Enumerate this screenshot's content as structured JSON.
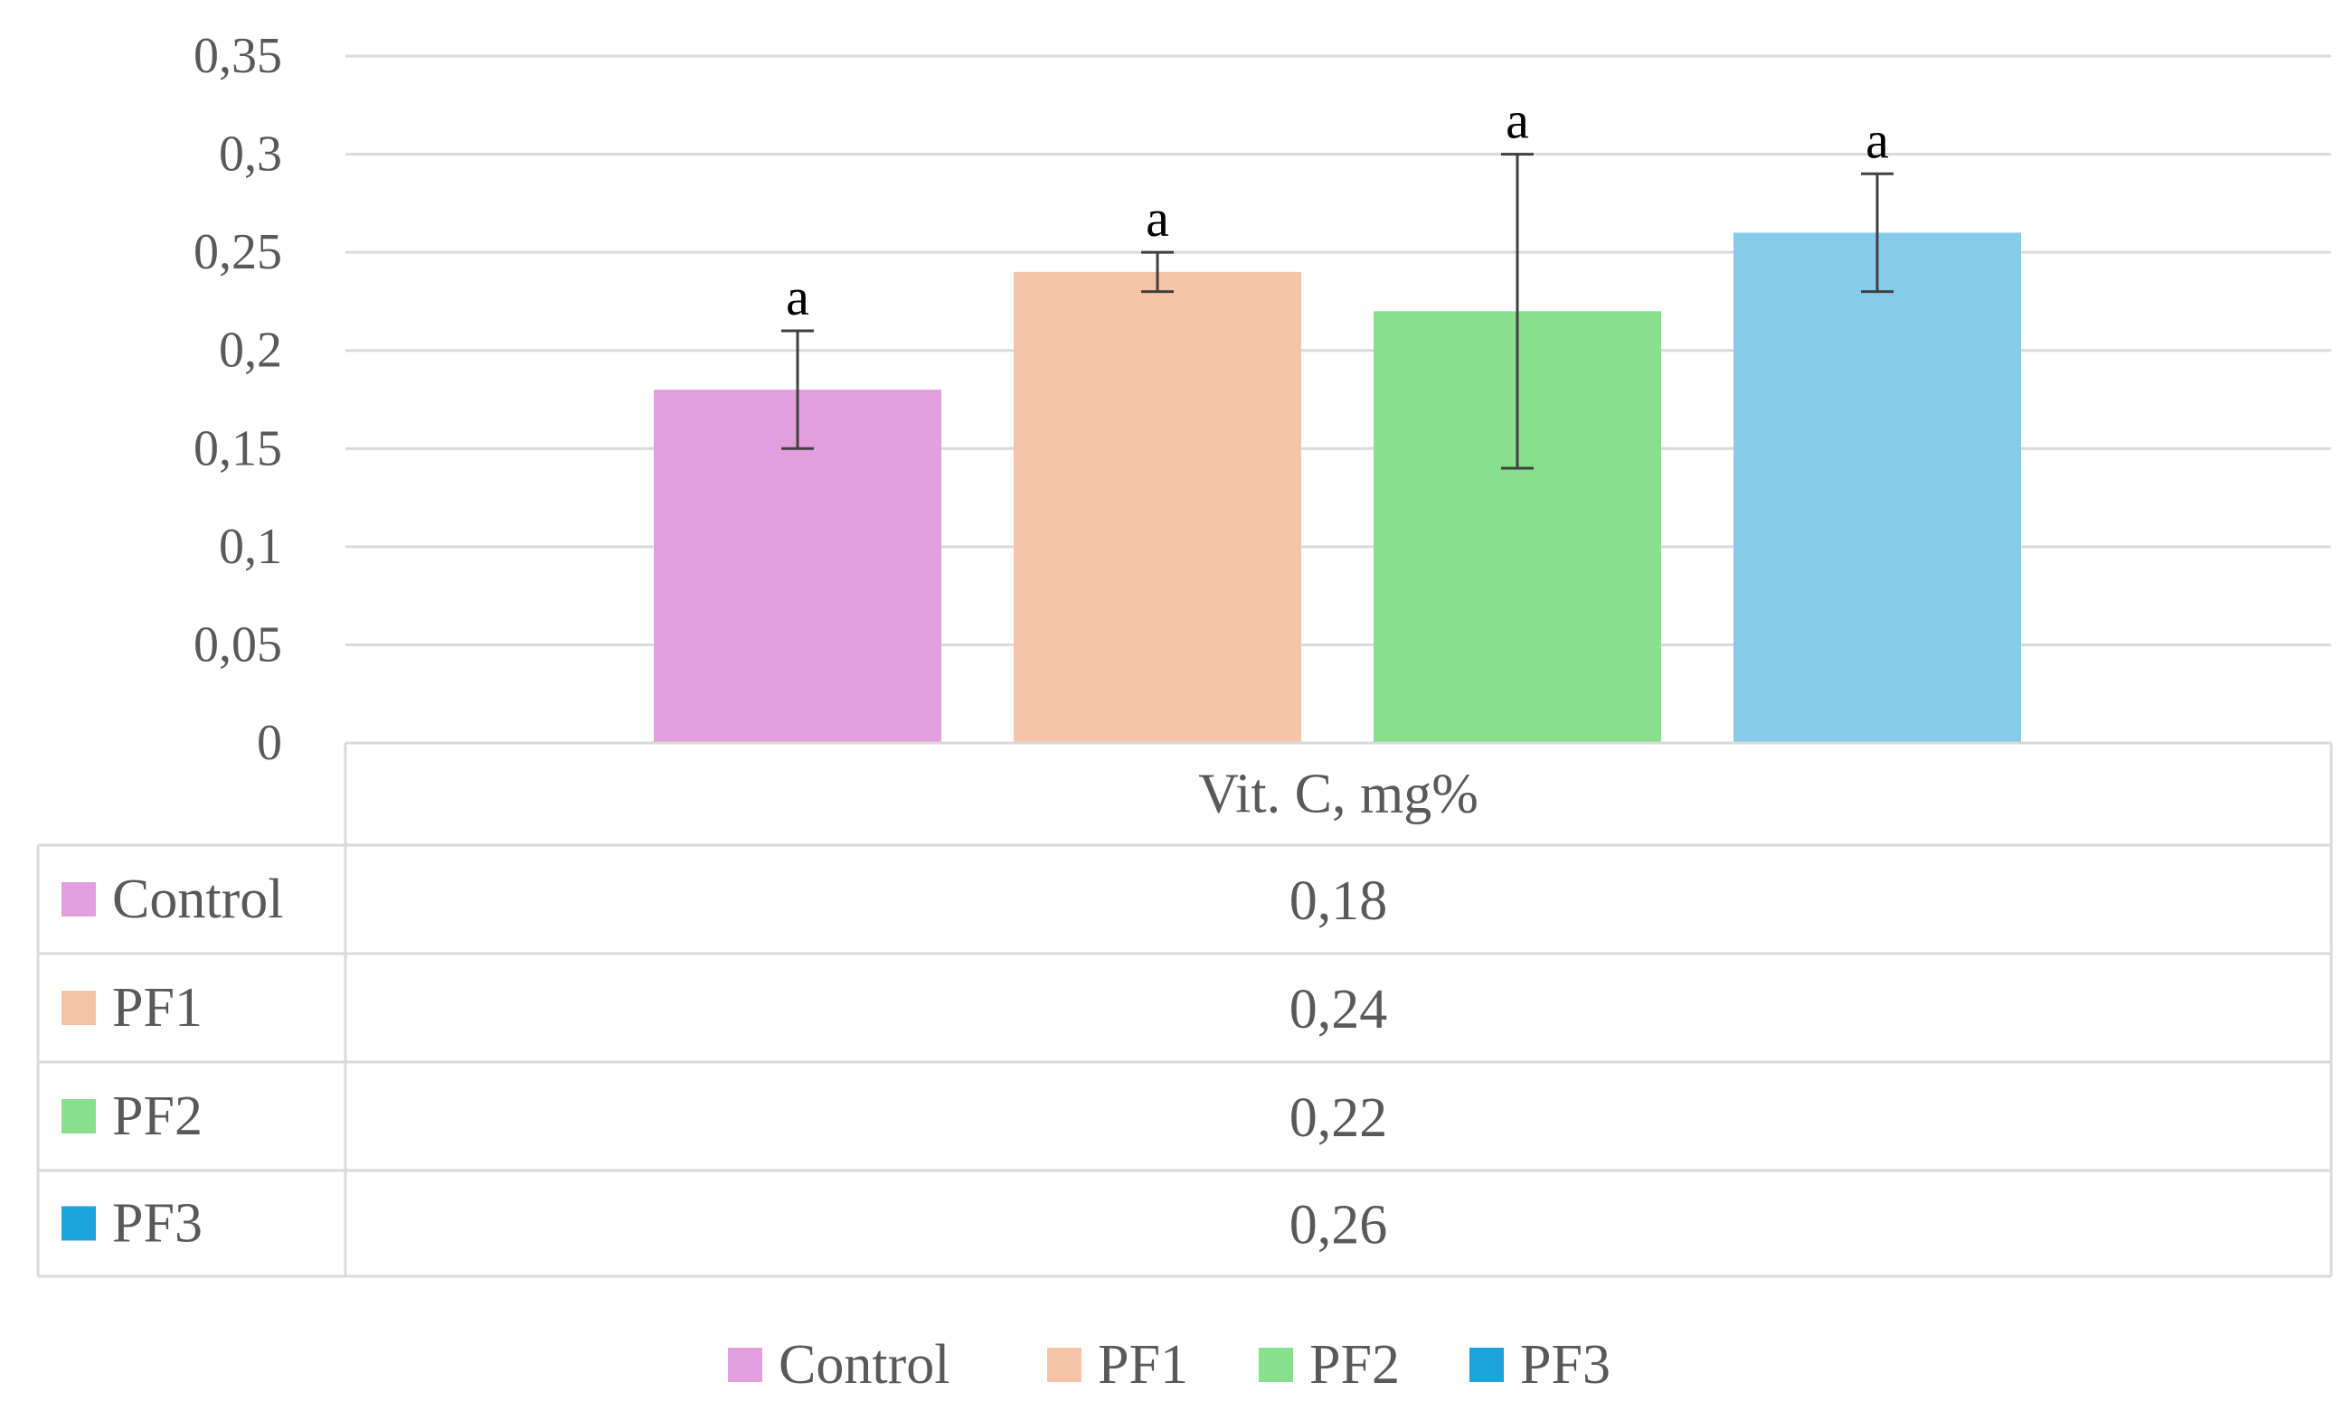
{
  "chart_data": {
    "type": "bar",
    "title": "",
    "xlabel": "",
    "ylabel": "",
    "ylim": [
      0,
      0.35
    ],
    "y_ticks": [
      "0",
      "0,05",
      "0,1",
      "0,15",
      "0,2",
      "0,25",
      "0,3",
      "0,35"
    ],
    "category": "Vit. C, mg%",
    "grid": true,
    "legend_position": "bottom",
    "series": [
      {
        "name": "Control",
        "value": 0.18,
        "value_label": "0,18",
        "err_low": 0.15,
        "err_high": 0.21,
        "letter": "a",
        "color": "#e39edd",
        "legend_color": "#e39edd"
      },
      {
        "name": "PF1",
        "value": 0.24,
        "value_label": "0,24",
        "err_low": 0.23,
        "err_high": 0.25,
        "letter": "a",
        "color": "#f5c4a8",
        "legend_color": "#f5c4a8"
      },
      {
        "name": "PF2",
        "value": 0.22,
        "value_label": "0,22",
        "err_low": 0.14,
        "err_high": 0.3,
        "letter": "a",
        "color": "#88e08e",
        "legend_color": "#88e08e"
      },
      {
        "name": "PF3",
        "value": 0.26,
        "value_label": "0,26",
        "err_low": 0.23,
        "err_high": 0.29,
        "letter": "a",
        "color": "#85cbea",
        "legend_color": "#1ba3dc"
      }
    ]
  }
}
